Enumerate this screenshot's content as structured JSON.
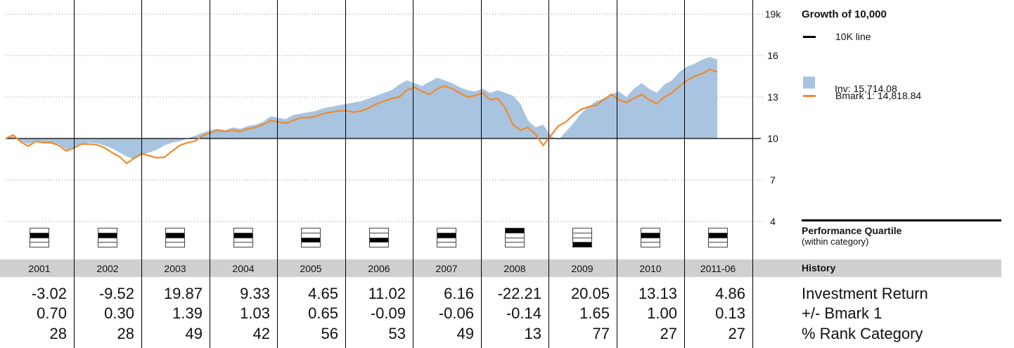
{
  "legend": {
    "title": "Growth of 10,000",
    "line_label": "10K line",
    "inv_label": "Inv: 15,714.08",
    "bmark_label": "Bmark 1: 14,818.84"
  },
  "colors": {
    "inv_area": "#a8c4e0",
    "bmark_line": "#f08a2c",
    "baseline": "#000000"
  },
  "quartile_section": {
    "title": "Performance Quartile",
    "subtitle": "(within category)"
  },
  "history": {
    "title": "History",
    "years": [
      "2001",
      "2002",
      "2003",
      "2004",
      "2005",
      "2006",
      "2007",
      "2008",
      "2009",
      "2010",
      "2011-06"
    ],
    "quartiles": [
      2,
      2,
      2,
      2,
      3,
      3,
      2,
      1,
      4,
      2,
      2
    ],
    "rows": [
      {
        "label": "Investment Return",
        "values": [
          "-3.02",
          "-9.52",
          "19.87",
          "9.33",
          "4.65",
          "11.02",
          "6.16",
          "-22.21",
          "20.05",
          "13.13",
          "4.86"
        ]
      },
      {
        "label": "+/- Bmark 1",
        "values": [
          "0.70",
          "0.30",
          "1.39",
          "1.03",
          "0.65",
          "-0.09",
          "-0.06",
          "-0.14",
          "1.65",
          "1.00",
          "0.13"
        ]
      },
      {
        "label": "% Rank Category",
        "values": [
          "28",
          "28",
          "49",
          "42",
          "56",
          "53",
          "49",
          "13",
          "77",
          "27",
          "27"
        ]
      }
    ]
  },
  "chart_data": {
    "type": "area",
    "title": "Growth of 10,000",
    "y_ticks": [
      "19k",
      "16",
      "13",
      "10",
      "7",
      "4"
    ],
    "y_tick_values": [
      19,
      16,
      13,
      10,
      7,
      4
    ],
    "ylim": [
      4,
      19
    ],
    "baseline": 10,
    "x_range": [
      "2001-01",
      "2011-06"
    ],
    "grid": true,
    "legend_position": "right",
    "series": [
      {
        "name": "Inv: 15,714.08",
        "values": [
          10.0,
          10.15,
          9.8,
          9.6,
          9.8,
          9.75,
          9.7,
          9.6,
          9.2,
          9.3,
          9.6,
          9.7,
          9.65,
          9.5,
          9.3,
          9.0,
          8.7,
          8.5,
          8.8,
          9.0,
          9.2,
          9.5,
          9.7,
          9.8,
          10.0,
          10.2,
          10.4,
          10.6,
          10.7,
          10.6,
          10.8,
          10.7,
          10.9,
          11.0,
          11.2,
          11.6,
          11.5,
          11.4,
          11.7,
          11.8,
          11.9,
          12.0,
          12.2,
          12.3,
          12.4,
          12.5,
          12.6,
          12.7,
          12.9,
          13.1,
          13.3,
          13.5,
          13.9,
          14.2,
          14.0,
          13.8,
          14.1,
          14.4,
          14.2,
          14.0,
          13.7,
          13.5,
          13.4,
          13.6,
          13.3,
          13.5,
          13.3,
          13.1,
          12.5,
          11.3,
          10.8,
          11.0,
          10.2,
          9.9,
          10.5,
          11.1,
          11.8,
          12.3,
          12.7,
          12.9,
          13.2,
          13.4,
          13.0,
          13.6,
          14.0,
          13.6,
          13.3,
          13.9,
          14.2,
          14.8,
          15.2,
          15.4,
          15.7,
          15.9,
          15.71
        ]
      },
      {
        "name": "Bmark 1: 14,818.84",
        "values": [
          10.0,
          10.25,
          9.75,
          9.45,
          9.8,
          9.7,
          9.7,
          9.5,
          9.1,
          9.3,
          9.6,
          9.6,
          9.55,
          9.35,
          9.0,
          8.7,
          8.2,
          8.6,
          8.9,
          8.75,
          8.6,
          8.65,
          9.1,
          9.5,
          9.7,
          9.8,
          10.2,
          10.4,
          10.6,
          10.5,
          10.6,
          10.5,
          10.7,
          10.8,
          11.0,
          11.3,
          11.2,
          11.1,
          11.3,
          11.5,
          11.5,
          11.6,
          11.8,
          11.9,
          12.0,
          12.0,
          11.9,
          12.0,
          12.2,
          12.5,
          12.7,
          12.9,
          13.0,
          13.5,
          13.7,
          13.4,
          13.2,
          13.6,
          13.8,
          13.6,
          13.3,
          13.0,
          13.1,
          13.3,
          12.8,
          12.9,
          12.2,
          11.0,
          10.6,
          10.8,
          10.3,
          9.5,
          10.2,
          10.9,
          11.2,
          11.7,
          12.1,
          12.3,
          12.4,
          12.8,
          13.2,
          12.8,
          12.6,
          12.9,
          13.2,
          12.8,
          12.5,
          13.0,
          13.3,
          13.8,
          14.2,
          14.5,
          14.7,
          15.0,
          14.82
        ]
      }
    ]
  }
}
